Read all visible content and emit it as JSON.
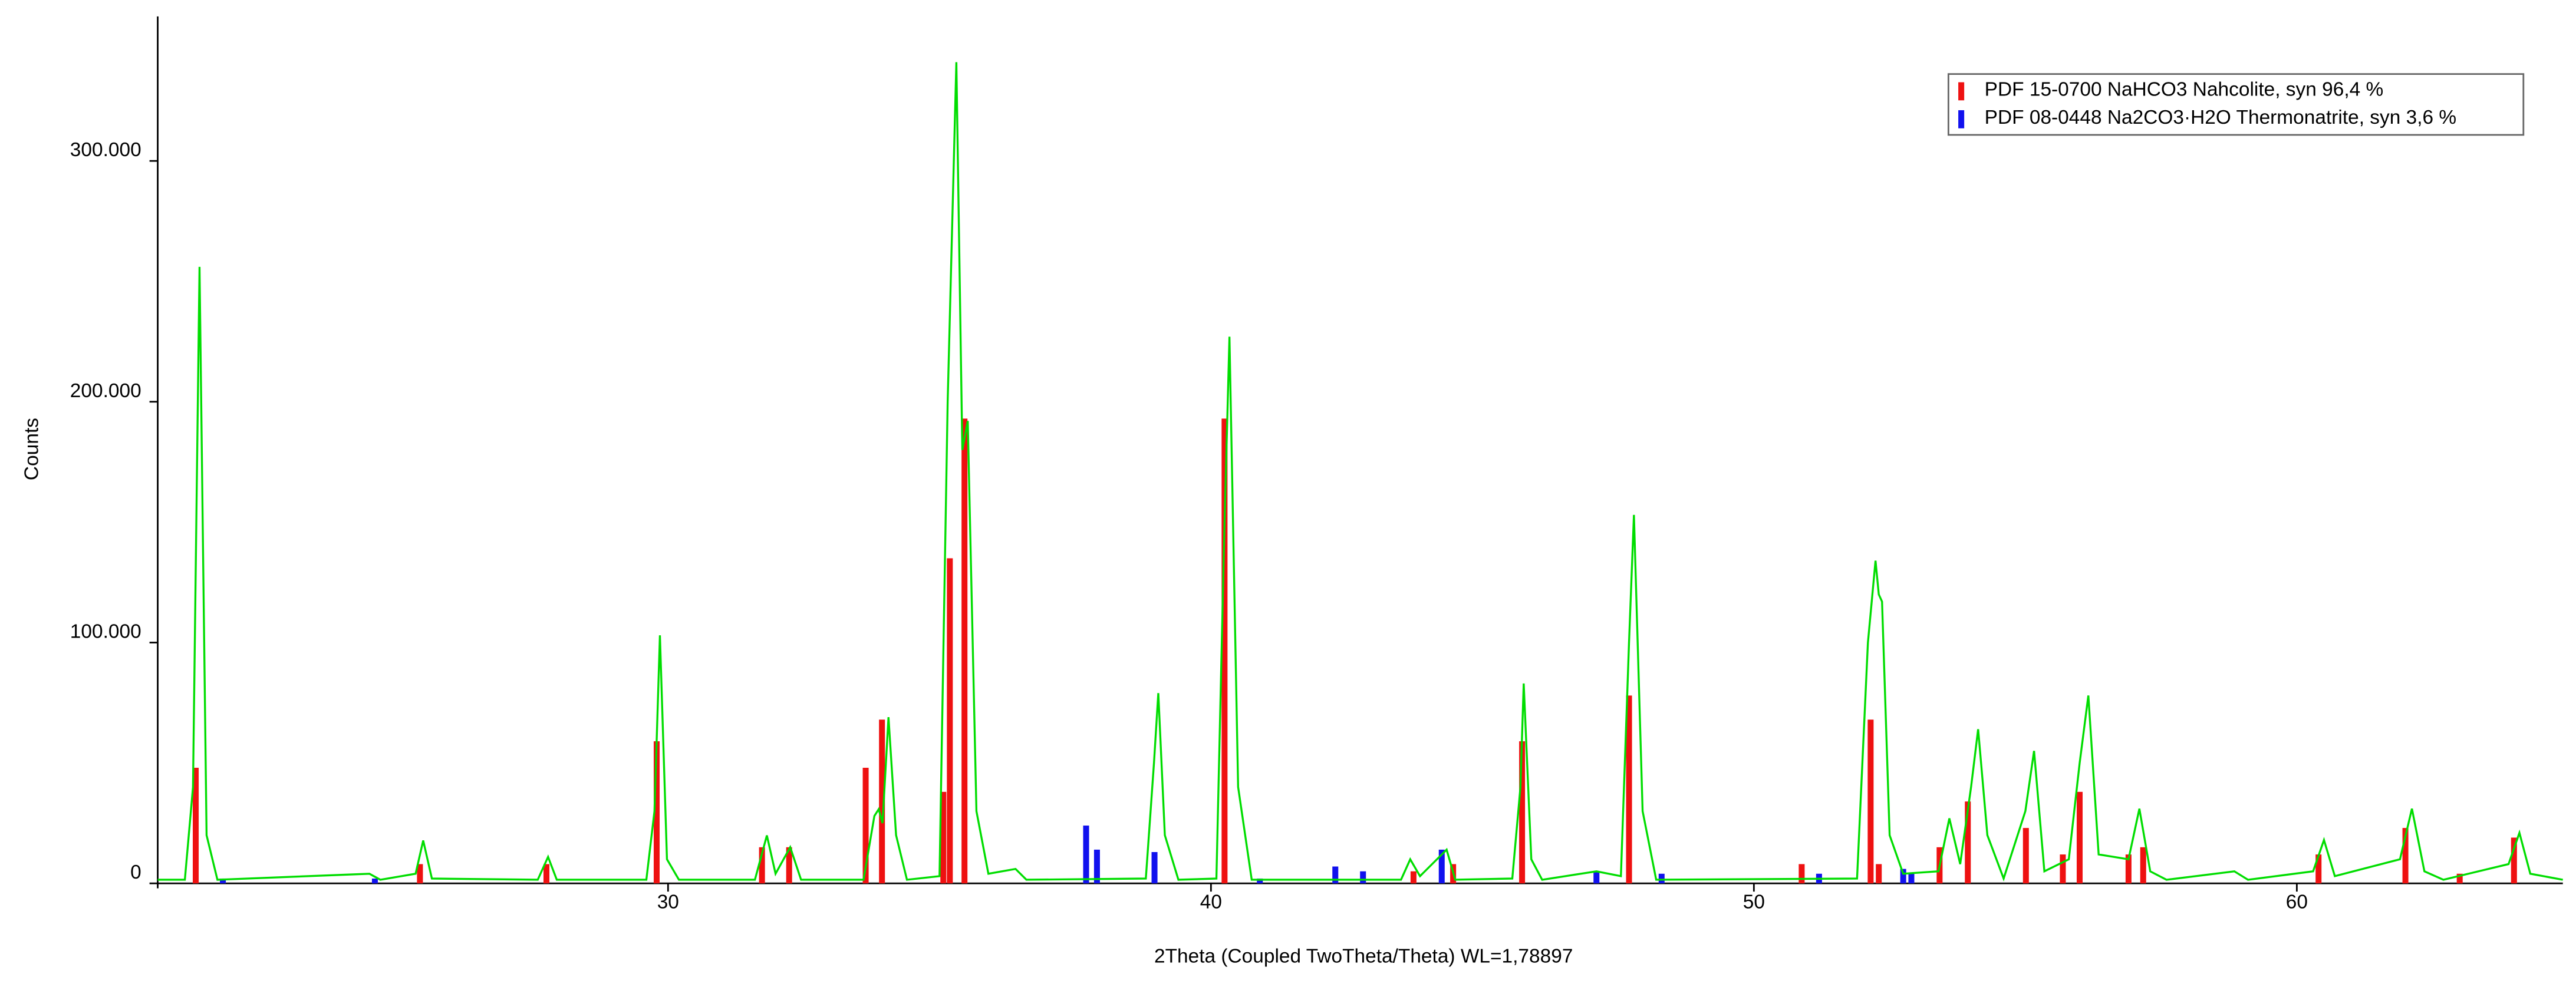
{
  "chart_data": {
    "type": "line",
    "x_label": "2Theta (Coupled TwoTheta/Theta) WL=1,78897",
    "y_label": "Counts",
    "xlim": [
      20.6,
      64.9
    ],
    "ylim": [
      0,
      360000
    ],
    "xticks": [
      30,
      40,
      50,
      60
    ],
    "yticks": [
      0,
      {
        "value": 100000,
        "label": "100.000"
      },
      {
        "value": 200000,
        "label": "200.000"
      },
      {
        "value": 300000,
        "label": "300.000"
      }
    ],
    "color": "#00dd00",
    "x": [
      20.6,
      21.1,
      21.25,
      21.37,
      21.5,
      21.7,
      24.5,
      24.7,
      25.35,
      25.49,
      25.65,
      27.6,
      27.79,
      27.95,
      29.6,
      29.75,
      29.85,
      29.98,
      30.2,
      31.6,
      31.82,
      31.98,
      32.25,
      32.45,
      33.6,
      33.8,
      33.88,
      33.95,
      34.06,
      34.2,
      34.4,
      35.0,
      35.15,
      35.31,
      35.42,
      35.52,
      35.68,
      35.9,
      36.4,
      36.6,
      38.8,
      38.95,
      39.03,
      39.15,
      39.4,
      40.1,
      40.25,
      40.34,
      40.5,
      40.75,
      43.5,
      43.67,
      43.85,
      44.34,
      44.5,
      45.55,
      45.7,
      45.76,
      45.9,
      46.1,
      47.1,
      47.55,
      47.7,
      47.79,
      47.95,
      48.2,
      51.9,
      52.1,
      52.24,
      52.3,
      52.36,
      52.5,
      52.75,
      53.4,
      53.6,
      53.8,
      54.0,
      54.13,
      54.3,
      54.6,
      55.0,
      55.16,
      55.35,
      55.8,
      56.0,
      56.16,
      56.35,
      56.9,
      57.1,
      57.3,
      57.6,
      58.85,
      59.1,
      60.3,
      60.5,
      60.7,
      61.9,
      62.12,
      62.35,
      62.7,
      63.9,
      64.1,
      64.3,
      64.9
    ],
    "values": [
      1500,
      1500,
      40000,
      256000,
      20000,
      1500,
      4000,
      1500,
      4000,
      17800,
      2000,
      1500,
      11000,
      1500,
      1500,
      30000,
      103000,
      10000,
      1500,
      1500,
      19900,
      4000,
      15000,
      1500,
      1500,
      28000,
      30800,
      25000,
      69000,
      20000,
      1500,
      3000,
      200000,
      341000,
      180000,
      192000,
      30000,
      4000,
      6000,
      1500,
      2000,
      50000,
      79000,
      20000,
      1500,
      2000,
      150000,
      227000,
      40000,
      1500,
      1500,
      10000,
      3000,
      14000,
      1500,
      2000,
      40000,
      83000,
      10000,
      1500,
      5000,
      3000,
      100000,
      153000,
      30000,
      1500,
      2000,
      100000,
      134000,
      120000,
      117000,
      20000,
      4000,
      5000,
      27000,
      8000,
      40000,
      64000,
      20000,
      2000,
      30000,
      55000,
      5000,
      10000,
      50000,
      78000,
      12000,
      10000,
      31000,
      5000,
      1500,
      5000,
      1500,
      5000,
      18000,
      3000,
      10000,
      31000,
      5000,
      1500,
      8000,
      21000,
      4000,
      1500
    ],
    "reference_series": [
      {
        "name": "PDF 15-0700 NaHCO3 Nahcolite, syn 96,4 %",
        "color": "#ee1111",
        "x": [
          21.3,
          25.43,
          27.76,
          29.79,
          31.73,
          32.23,
          33.64,
          33.94,
          35.07,
          35.19,
          35.46,
          40.25,
          43.73,
          44.46,
          45.73,
          47.7,
          50.88,
          52.15,
          52.3,
          53.42,
          53.94,
          55.01,
          55.69,
          56.0,
          56.9,
          57.17,
          60.4,
          62.0,
          63.0,
          64.0
        ],
        "values": [
          48000,
          8000,
          8000,
          59000,
          15000,
          15000,
          48000,
          68000,
          38000,
          135000,
          193000,
          193000,
          5000,
          8000,
          59000,
          78000,
          8000,
          68000,
          8000,
          15000,
          34000,
          23000,
          12000,
          38000,
          12000,
          15000,
          12000,
          23000,
          4000,
          19000
        ]
      },
      {
        "name": "PDF 08-0448 Na2CO3·H2O Thermonatrite, syn 3,6 %",
        "color": "#1111ee",
        "x": [
          21.8,
          24.6,
          37.7,
          37.9,
          38.96,
          40.9,
          42.29,
          42.8,
          44.25,
          47.1,
          48.3,
          51.2,
          52.75,
          52.9
        ],
        "values": [
          2000,
          2000,
          24000,
          14000,
          13000,
          2000,
          7000,
          5000,
          14000,
          5000,
          4000,
          4000,
          6000,
          4000
        ]
      }
    ]
  }
}
